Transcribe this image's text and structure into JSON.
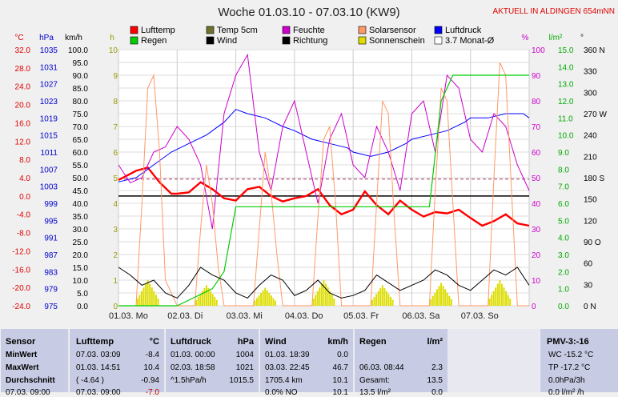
{
  "chart_data": {
    "type": "line",
    "title": "Woche 01.03.10 - 07.03.10 (KW9)",
    "location_label": "AKTUELL IN ALDINGEN 654mNN",
    "x_ticks": [
      "01.03. Mo",
      "02.03. Di",
      "03.03. Mi",
      "04.03. Do",
      "05.03. Fr",
      "06.03. Sa",
      "07.03. So"
    ],
    "axes": {
      "temp_c": {
        "unit": "°C",
        "ticks": [
          "32.0",
          "28.0",
          "24.0",
          "20.0",
          "16.0",
          "12.0",
          "8.0",
          "4.0",
          "0.0",
          "-4.0",
          "-8.0",
          "-12.0",
          "-16.0",
          "-20.0",
          "-24.0"
        ],
        "range": [
          -24,
          32
        ]
      },
      "pressure_hpa": {
        "unit": "hPa",
        "ticks": [
          "1035",
          "1031",
          "1027",
          "1023",
          "1019",
          "1015",
          "1011",
          "1007",
          "1003",
          "999",
          "995",
          "991",
          "987",
          "983",
          "979",
          "975"
        ],
        "range": [
          975,
          1035
        ]
      },
      "wind_kmh": {
        "unit": "km/h",
        "ticks": [
          "100.0",
          "95.0",
          "90.0",
          "85.0",
          "80.0",
          "75.0",
          "70.0",
          "65.0",
          "60.0",
          "55.0",
          "50.0",
          "45.0",
          "40.0",
          "35.0",
          "30.0",
          "25.0",
          "20.0",
          "15.0",
          "10.0",
          "5.0",
          "0.0"
        ],
        "range": [
          0,
          100
        ]
      },
      "sun_h": {
        "unit": "h",
        "ticks": [
          "10",
          "9",
          "8",
          "7",
          "6",
          "5",
          "4",
          "3",
          "2",
          "1",
          "0"
        ],
        "range": [
          0,
          10
        ]
      },
      "humidity_pct": {
        "unit": "%",
        "ticks": [
          "100",
          "90",
          "80",
          "70",
          "60",
          "50",
          "40",
          "30",
          "20",
          "10",
          "0"
        ],
        "range": [
          0,
          100
        ]
      },
      "rain_lm2": {
        "unit": "l/m²",
        "ticks": [
          "15.0",
          "14.0",
          "13.0",
          "12.0",
          "11.0",
          "10.0",
          "9.0",
          "8.0",
          "7.0",
          "6.0",
          "5.0",
          "4.0",
          "3.0",
          "2.0",
          "1.0",
          "0.0"
        ],
        "range": [
          0,
          15
        ]
      },
      "direction_deg": {
        "unit": "°",
        "ticks": [
          "360 N",
          "330",
          "300",
          "270 W",
          "240",
          "210",
          "180 S",
          "150",
          "120",
          "90 O",
          "60",
          "30",
          "0 N"
        ],
        "range": [
          0,
          360
        ]
      }
    },
    "legend": [
      {
        "label": "Lufttemp",
        "color": "#ff0000"
      },
      {
        "label": "Temp 5cm",
        "color": "#707030"
      },
      {
        "label": "Feuchte",
        "color": "#cc00cc"
      },
      {
        "label": "Solarsensor",
        "color": "#ff9966"
      },
      {
        "label": "Luftdruck",
        "color": "#0000ff"
      },
      {
        "label": "Regen",
        "color": "#00cc00"
      },
      {
        "label": "Wind",
        "color": "#000000"
      },
      {
        "label": "Richtung",
        "color": "#000000"
      },
      {
        "label": "Sonnenschein",
        "color": "#dddd00"
      },
      {
        "label": "3.7 Monat-Ø",
        "color": "#ffffff"
      }
    ],
    "monthly_avg_c": 3.7,
    "series": [
      {
        "name": "Lufttemp",
        "axis": "temp_c",
        "color": "#ff0000",
        "x": [
          0,
          0.3,
          0.5,
          0.7,
          0.9,
          1.0,
          1.2,
          1.4,
          1.6,
          1.8,
          2.0,
          2.2,
          2.4,
          2.6,
          2.8,
          3.0,
          3.2,
          3.4,
          3.6,
          3.8,
          4.0,
          4.2,
          4.4,
          4.6,
          4.8,
          5.0,
          5.2,
          5.4,
          5.6,
          5.8,
          6.0,
          6.2,
          6.4,
          6.6,
          6.8,
          7.0
        ],
        "y": [
          3.5,
          5.5,
          6.2,
          3.0,
          0.5,
          0.5,
          0.8,
          3.0,
          1.5,
          -0.5,
          -1.0,
          1.5,
          2.0,
          0.0,
          -1.2,
          -0.5,
          0.0,
          1.5,
          -2.0,
          -4.0,
          -3.0,
          1.0,
          -2.0,
          -4.0,
          -1.0,
          -3.0,
          -4.5,
          -3.5,
          -3.8,
          -3.0,
          -4.8,
          -6.5,
          -5.5,
          -4.0,
          -6.0,
          -6.5
        ]
      },
      {
        "name": "Luftdruck",
        "axis": "pressure_hpa",
        "color": "#0000ff",
        "x": [
          0,
          0.3,
          0.6,
          0.9,
          1.2,
          1.5,
          1.8,
          2.0,
          2.2,
          2.5,
          2.8,
          3.0,
          3.3,
          3.6,
          3.9,
          4.0,
          4.3,
          4.6,
          4.9,
          5.0,
          5.3,
          5.6,
          5.9,
          6.0,
          6.3,
          6.6,
          6.9,
          7.0
        ],
        "y": [
          1004,
          1005,
          1008,
          1011,
          1013,
          1015,
          1018,
          1021,
          1020,
          1019,
          1017,
          1016,
          1014,
          1013,
          1012,
          1011,
          1010,
          1011,
          1013,
          1014,
          1015,
          1016,
          1018,
          1019,
          1019,
          1020,
          1020,
          1019
        ]
      },
      {
        "name": "Feuchte",
        "axis": "humidity_pct",
        "color": "#cc00cc",
        "x": [
          0,
          0.2,
          0.4,
          0.6,
          0.8,
          1.0,
          1.2,
          1.4,
          1.6,
          1.8,
          2.0,
          2.2,
          2.4,
          2.6,
          2.8,
          3.0,
          3.2,
          3.4,
          3.6,
          3.8,
          4.0,
          4.2,
          4.4,
          4.6,
          4.8,
          5.0,
          5.2,
          5.4,
          5.6,
          5.8,
          6.0,
          6.2,
          6.4,
          6.6,
          6.8,
          7.0
        ],
        "y": [
          55,
          48,
          50,
          60,
          62,
          70,
          65,
          55,
          30,
          75,
          90,
          98,
          60,
          45,
          70,
          80,
          60,
          40,
          65,
          75,
          55,
          50,
          70,
          60,
          45,
          75,
          80,
          60,
          90,
          85,
          65,
          60,
          75,
          70,
          55,
          45
        ]
      },
      {
        "name": "Solarsensor",
        "axis": "humidity_pct",
        "color": "#ff9966",
        "x": [
          0,
          0.3,
          0.4,
          0.5,
          0.6,
          0.7,
          0.8,
          1.0,
          1.3,
          1.4,
          1.5,
          1.6,
          1.7,
          1.8,
          2.0,
          2.3,
          2.4,
          2.5,
          2.6,
          2.7,
          2.8,
          3.0,
          3.3,
          3.4,
          3.5,
          3.6,
          3.7,
          3.8,
          4.0,
          4.3,
          4.4,
          4.5,
          4.6,
          4.7,
          4.8,
          5.0,
          5.3,
          5.4,
          5.5,
          5.6,
          5.7,
          5.8,
          6.0,
          6.3,
          6.4,
          6.5,
          6.6,
          6.7,
          6.8,
          7.0
        ],
        "y": [
          0,
          0,
          40,
          85,
          90,
          60,
          10,
          0,
          0,
          30,
          55,
          40,
          15,
          0,
          0,
          0,
          30,
          60,
          45,
          20,
          0,
          0,
          0,
          35,
          65,
          70,
          40,
          0,
          0,
          0,
          40,
          80,
          75,
          35,
          0,
          0,
          0,
          45,
          85,
          80,
          40,
          0,
          0,
          0,
          50,
          95,
          90,
          45,
          0,
          0
        ]
      },
      {
        "name": "Regen",
        "axis": "rain_lm2",
        "color": "#00cc00",
        "x": [
          0,
          1.0,
          1.6,
          1.8,
          2.0,
          2.2,
          3.0,
          4.0,
          5.0,
          5.3,
          5.5,
          5.7,
          6.0,
          7.0
        ],
        "y": [
          0,
          0,
          1.0,
          2.0,
          5.8,
          5.8,
          5.8,
          5.8,
          5.8,
          5.8,
          12.0,
          13.5,
          13.5,
          13.5
        ]
      },
      {
        "name": "Wind",
        "axis": "wind_kmh",
        "color": "#000000",
        "x": [
          0,
          0.2,
          0.4,
          0.6,
          0.8,
          1.0,
          1.2,
          1.4,
          1.6,
          1.8,
          2.0,
          2.2,
          2.4,
          2.6,
          2.8,
          3.0,
          3.2,
          3.4,
          3.6,
          3.8,
          4.0,
          4.2,
          4.4,
          4.6,
          4.8,
          5.0,
          5.2,
          5.4,
          5.6,
          5.8,
          6.0,
          6.2,
          6.4,
          6.6,
          6.8,
          7.0
        ],
        "y": [
          15,
          12,
          8,
          10,
          5,
          3,
          8,
          15,
          12,
          10,
          5,
          3,
          8,
          12,
          10,
          4,
          6,
          10,
          5,
          3,
          4,
          6,
          12,
          9,
          6,
          8,
          10,
          14,
          12,
          8,
          6,
          10,
          14,
          12,
          15,
          8
        ]
      }
    ],
    "sunshine_bars": {
      "axis": "sun_h",
      "days": [
        0.5,
        1.5,
        2.5,
        3.5,
        4.5,
        5.5,
        6.5
      ],
      "peak": [
        1.0,
        0.8,
        0.7,
        1.0,
        0.8,
        0.9,
        1.0
      ]
    }
  },
  "stats": {
    "sensor": {
      "title": "Sensor",
      "rows": [
        "MinWert",
        "MaxWert",
        "Durchschnitt"
      ],
      "extra": "07.03. 09:00"
    },
    "lufttemp": {
      "title": "Lufttemp",
      "unit": "°C",
      "rows": [
        [
          "07.03.  03:09",
          "-8.4"
        ],
        [
          "01.03.  14:51",
          "10.4"
        ],
        [
          "( -4.64 )",
          "-0.94"
        ]
      ],
      "extra_left": "07.03. 09:00",
      "extra_right": "-7.0"
    },
    "luftdruck": {
      "title": "Luftdruck",
      "unit": "hPa",
      "rows": [
        [
          "01.03.  00:00",
          "1004"
        ],
        [
          "02.03.  18:58",
          "1021"
        ],
        [
          "^1.5hPa/h",
          "1015.5"
        ]
      ]
    },
    "wind": {
      "title": "Wind",
      "unit": "km/h",
      "rows": [
        [
          "01.03.  18:39",
          "0.0"
        ],
        [
          "03.03.  22:45",
          "46.7"
        ],
        [
          "1705.4 km",
          "10.1"
        ]
      ],
      "extra_left": "0.0% NO",
      "extra_right": "10.1"
    },
    "regen": {
      "title": "Regen",
      "unit": "l/m²",
      "rows": [
        [
          "",
          ""
        ],
        [
          "06.03.  08:44",
          "2.3"
        ],
        [
          "Gesamt:",
          "13.5"
        ]
      ],
      "extra_left": "13.5 l/m²",
      "extra_right": "0.0"
    },
    "pmv": {
      "title": "PMV-3:-16",
      "rows": [
        "WC -15.2 °C",
        "TP -17.2 °C",
        "0.0hPa/3h"
      ],
      "extra": "0.0 l/m² /h"
    }
  }
}
